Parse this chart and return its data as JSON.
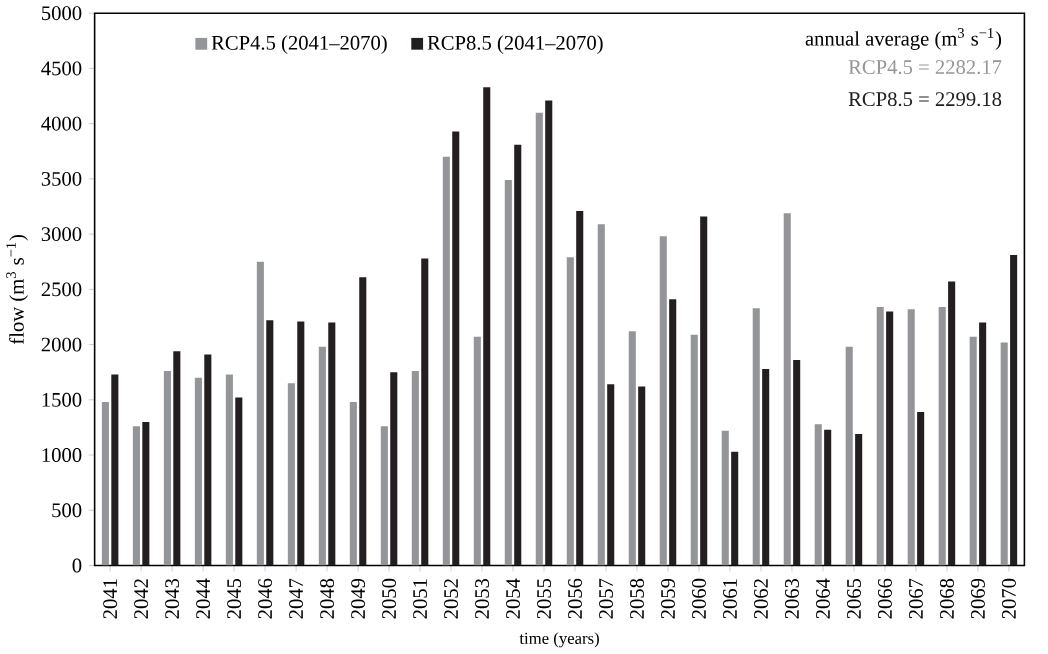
{
  "chart_data": {
    "type": "bar",
    "xlabel": "time (years)",
    "ylabel": "flow (m$^{3}$ s$^{−1}$)",
    "categories": [
      "2041",
      "2042",
      "2043",
      "2044",
      "2045",
      "2046",
      "2047",
      "2048",
      "2049",
      "2050",
      "2051",
      "2052",
      "2053",
      "2054",
      "2055",
      "2056",
      "2057",
      "2058",
      "2059",
      "2060",
      "2061",
      "2062",
      "2063",
      "2064",
      "2065",
      "2066",
      "2067",
      "2068",
      "2069",
      "2070"
    ],
    "series": [
      {
        "name": "RCP4.5 (2041–2070)",
        "color": "#939598",
        "values": [
          1480,
          1260,
          1760,
          1700,
          1730,
          2750,
          1650,
          1980,
          1480,
          1260,
          1760,
          3700,
          2070,
          3490,
          4100,
          2790,
          3090,
          2120,
          2980,
          2090,
          1220,
          2330,
          3190,
          1280,
          1980,
          2340,
          2320,
          2340,
          2070,
          2020
        ]
      },
      {
        "name": "RCP8.5 (2041–2070)",
        "color": "#231f20",
        "values": [
          1730,
          1300,
          1940,
          1910,
          1520,
          2220,
          2210,
          2200,
          2610,
          1750,
          2780,
          3930,
          4330,
          3810,
          4210,
          3210,
          1640,
          1620,
          2410,
          3160,
          1030,
          1780,
          1860,
          1230,
          1190,
          2300,
          1390,
          2570,
          2200,
          2810
        ]
      }
    ],
    "ylim": [
      0,
      5000
    ],
    "yticks": [
      0,
      500,
      1000,
      1500,
      2000,
      2500,
      3000,
      3500,
      4000,
      4500,
      5000
    ],
    "legend": "top",
    "annotations": [
      "annual average (m$^{3}$ s$^{−1}$)",
      "RCP4.5 = 2282.17",
      "RCP8.5   = 2299.18"
    ]
  }
}
